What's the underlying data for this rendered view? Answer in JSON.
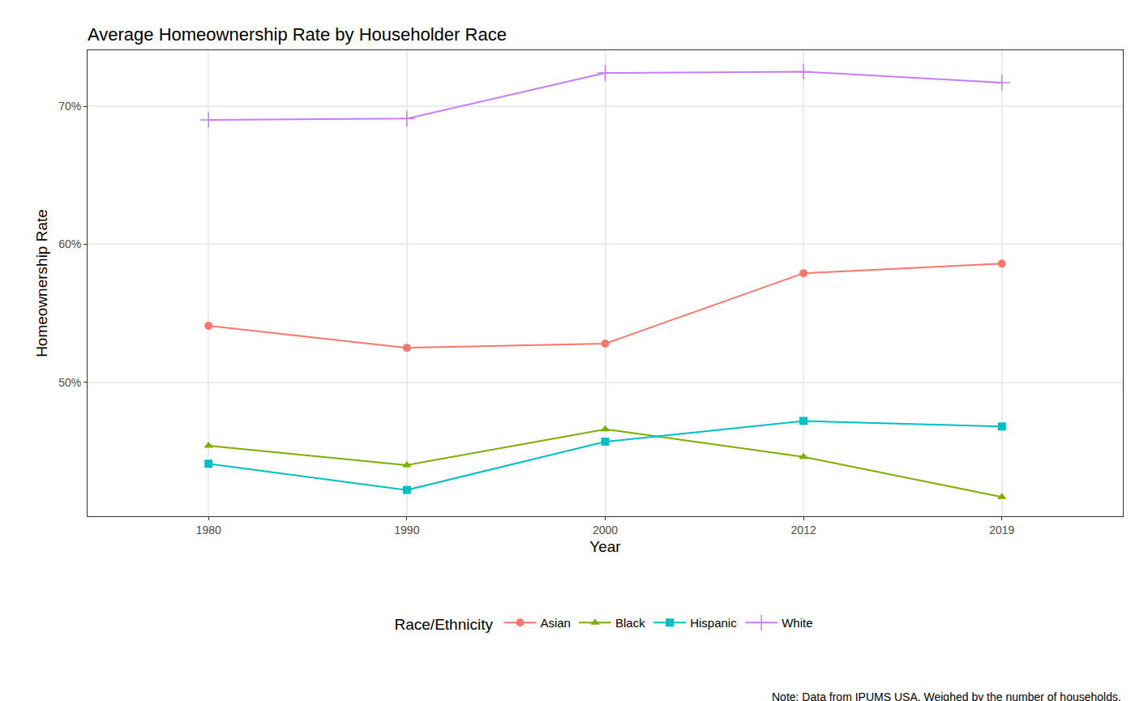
{
  "chart_data": {
    "type": "line",
    "title": "Average Homeownership Rate by Householder Race",
    "x_label": "Year",
    "y_label": "Homeownership Rate",
    "legend_title": "Race/Ethnicity",
    "annotations": [
      "Note: Data from IPUMS USA. Weighed by the number of households."
    ],
    "categories": [
      "1980",
      "1990",
      "2000",
      "2012",
      "2019"
    ],
    "series": [
      {
        "name": "Asian",
        "color": "#F8766D",
        "marker": "circle",
        "values": [
          54.1,
          52.5,
          52.8,
          57.9,
          58.6
        ]
      },
      {
        "name": "Black",
        "color": "#7CAE00",
        "marker": "triangle-up",
        "values": [
          45.4,
          44.0,
          46.6,
          44.6,
          41.7
        ]
      },
      {
        "name": "Hispanic",
        "color": "#00BFC4",
        "marker": "square",
        "values": [
          44.1,
          42.2,
          45.7,
          47.2,
          46.8
        ]
      },
      {
        "name": "White",
        "color": "#C77CFF",
        "marker": "cross",
        "values": [
          69.0,
          69.1,
          72.4,
          72.5,
          71.7
        ]
      }
    ],
    "ylim": [
      40.3,
      74.05
    ],
    "yticks": [
      {
        "value": 50,
        "label": "50%"
      },
      {
        "value": 60,
        "label": "60%"
      },
      {
        "value": 70,
        "label": "70%"
      }
    ],
    "grid": true,
    "legend": "bottom"
  }
}
